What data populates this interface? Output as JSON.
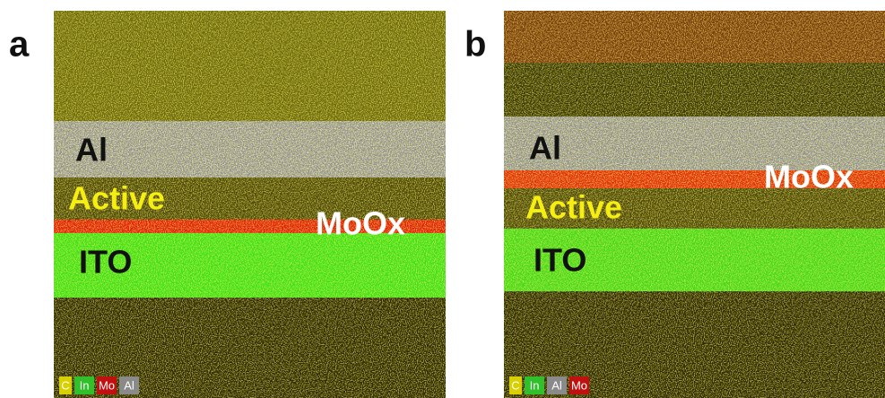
{
  "panels": [
    {
      "label": "a",
      "layers": {
        "al": "Al",
        "active": "Active",
        "moox": "MoOx",
        "ito": "ITO"
      },
      "legend": [
        "C",
        "In",
        "Mo",
        "Al"
      ]
    },
    {
      "label": "b",
      "layers": {
        "al": "Al",
        "active": "Active",
        "moox": "MoOx",
        "ito": "ITO"
      },
      "legend": [
        "C",
        "In",
        "Al",
        "Mo"
      ]
    }
  ]
}
